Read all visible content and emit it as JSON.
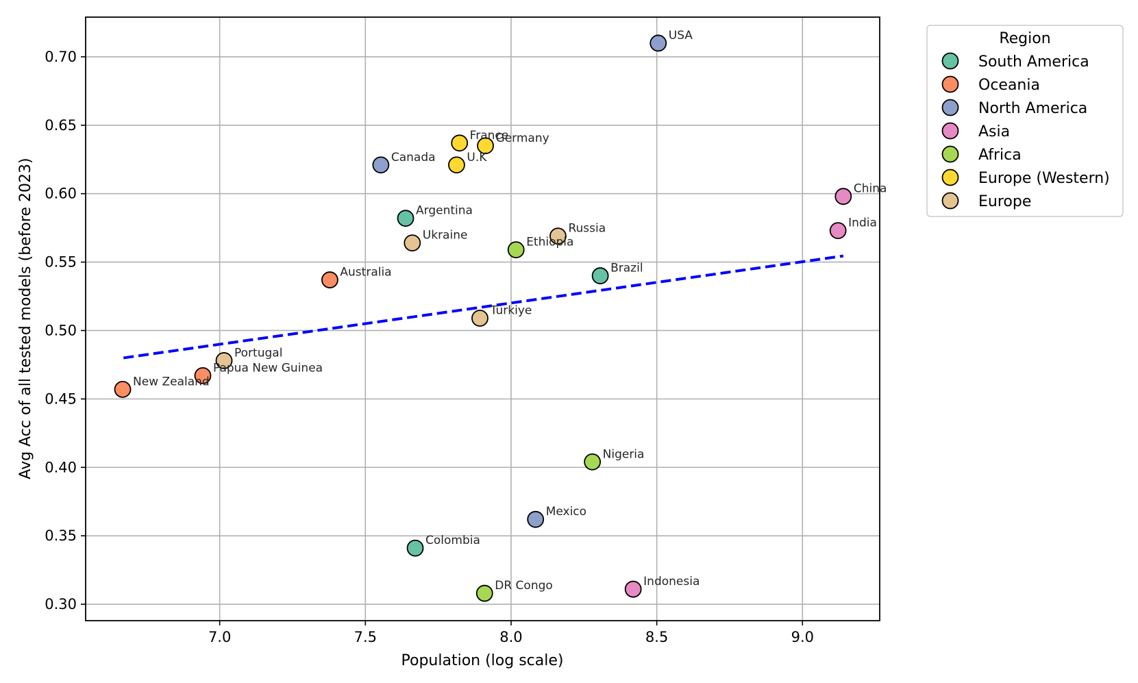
{
  "chart_data": {
    "type": "scatter",
    "title": "",
    "xlabel": "Population (log scale)",
    "ylabel": "Avg Acc of all tested models (before 2023)",
    "xlim": [
      6.54,
      9.265
    ],
    "ylim": [
      0.288,
      0.729
    ],
    "xticks": [
      7.0,
      7.5,
      8.0,
      8.5,
      9.0
    ],
    "xtick_labels": [
      "7.0",
      "7.5",
      "8.0",
      "8.5",
      "9.0"
    ],
    "yticks": [
      0.3,
      0.35,
      0.4,
      0.45,
      0.5,
      0.55,
      0.6,
      0.65,
      0.7
    ],
    "ytick_labels": [
      "0.30",
      "0.35",
      "0.40",
      "0.45",
      "0.50",
      "0.55",
      "0.60",
      "0.65",
      "0.70"
    ],
    "grid": true,
    "legend": {
      "title": "Region",
      "placement": "outside-upper-right",
      "entries": [
        {
          "name": "South America",
          "color": "#66c2a5"
        },
        {
          "name": "Oceania",
          "color": "#fc8d62"
        },
        {
          "name": "North America",
          "color": "#8da0cb"
        },
        {
          "name": "Asia",
          "color": "#e78ac3"
        },
        {
          "name": "Africa",
          "color": "#a6d854"
        },
        {
          "name": "Europe (Western)",
          "color": "#ffd92f"
        },
        {
          "name": "Europe",
          "color": "#e5c494"
        }
      ]
    },
    "trendline": {
      "x": [
        6.67,
        9.14
      ],
      "y": [
        0.48,
        0.5545
      ],
      "color": "#0000ff",
      "style": "dashed"
    },
    "points": [
      {
        "label": "USA",
        "region": "North America",
        "x": 8.505,
        "y": 0.71
      },
      {
        "label": "France",
        "region": "Europe (Western)",
        "x": 7.823,
        "y": 0.637
      },
      {
        "label": "Germany",
        "region": "Europe (Western)",
        "x": 7.912,
        "y": 0.635
      },
      {
        "label": "U.K",
        "region": "Europe (Western)",
        "x": 7.813,
        "y": 0.621
      },
      {
        "label": "Canada",
        "region": "North America",
        "x": 7.553,
        "y": 0.621
      },
      {
        "label": "China",
        "region": "Asia",
        "x": 9.14,
        "y": 0.598
      },
      {
        "label": "India",
        "region": "Asia",
        "x": 9.122,
        "y": 0.573
      },
      {
        "label": "Argentina",
        "region": "South America",
        "x": 7.638,
        "y": 0.582
      },
      {
        "label": "Ukraine",
        "region": "Europe",
        "x": 7.661,
        "y": 0.564
      },
      {
        "label": "Russia",
        "region": "Europe",
        "x": 8.161,
        "y": 0.569
      },
      {
        "label": "Ethiopia",
        "region": "Africa",
        "x": 8.017,
        "y": 0.559
      },
      {
        "label": "Brazil",
        "region": "South America",
        "x": 8.306,
        "y": 0.54
      },
      {
        "label": "Australia",
        "region": "Oceania",
        "x": 7.378,
        "y": 0.537
      },
      {
        "label": "Türkiye",
        "region": "Europe",
        "x": 7.893,
        "y": 0.509
      },
      {
        "label": "Portugal",
        "region": "Europe",
        "x": 7.015,
        "y": 0.478
      },
      {
        "label": "Papua New Guinea",
        "region": "Oceania",
        "x": 6.942,
        "y": 0.467
      },
      {
        "label": "New Zealand",
        "region": "Oceania",
        "x": 6.667,
        "y": 0.457
      },
      {
        "label": "Nigeria",
        "region": "Africa",
        "x": 8.279,
        "y": 0.404
      },
      {
        "label": "Mexico",
        "region": "North America",
        "x": 8.084,
        "y": 0.362
      },
      {
        "label": "Colombia",
        "region": "South America",
        "x": 7.671,
        "y": 0.341
      },
      {
        "label": "DR Congo",
        "region": "Africa",
        "x": 7.909,
        "y": 0.308
      },
      {
        "label": "Indonesia",
        "region": "Asia",
        "x": 8.419,
        "y": 0.311
      }
    ]
  }
}
